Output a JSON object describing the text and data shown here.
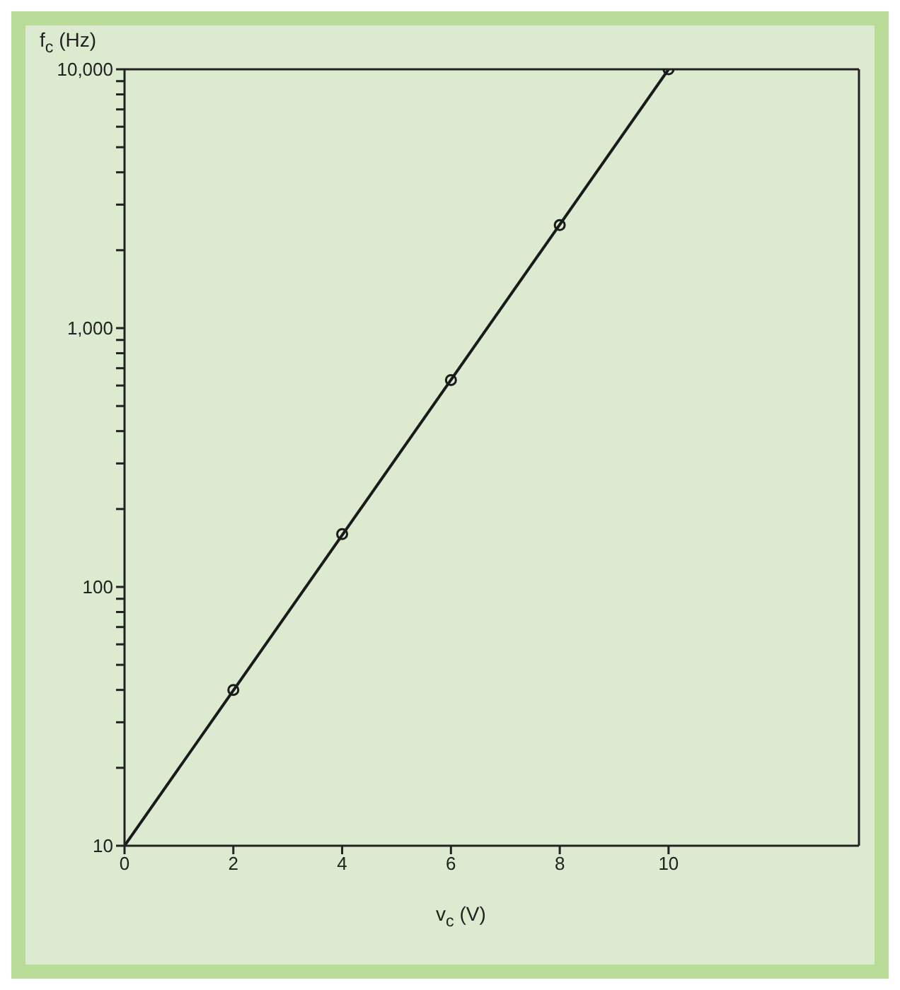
{
  "chart_data": {
    "type": "line",
    "xlabel": "v$_{c}$  (V)",
    "ylabel": "f$_{c}$  (Hz)",
    "xlim": [
      0,
      13.5
    ],
    "xticks": [
      0,
      2,
      4,
      6,
      8,
      10
    ],
    "ylim": [
      10,
      10000
    ],
    "log": true,
    "yticks": [
      10,
      {
        "value": 20,
        "label": null
      },
      {
        "value": 30,
        "label": null
      },
      {
        "value": 40,
        "label": null
      },
      {
        "value": 50,
        "label": null
      },
      {
        "value": 60,
        "label": null
      },
      {
        "value": 70,
        "label": null
      },
      {
        "value": 80,
        "label": null
      },
      {
        "value": 90,
        "label": null
      },
      100,
      {
        "value": 200,
        "label": null
      },
      {
        "value": 300,
        "label": null
      },
      {
        "value": 400,
        "label": null
      },
      {
        "value": 500,
        "label": null
      },
      {
        "value": 600,
        "label": null
      },
      {
        "value": 700,
        "label": null
      },
      {
        "value": 800,
        "label": null
      },
      {
        "value": 900,
        "label": null
      },
      {
        "value": 1000,
        "label": "1,000"
      },
      {
        "value": 2000,
        "label": null
      },
      {
        "value": 3000,
        "label": null
      },
      {
        "value": 4000,
        "label": null
      },
      {
        "value": 5000,
        "label": null
      },
      {
        "value": 6000,
        "label": null
      },
      {
        "value": 7000,
        "label": null
      },
      {
        "value": 8000,
        "label": null
      },
      {
        "value": 9000,
        "label": null
      },
      {
        "value": 10000,
        "label": "10,000"
      }
    ],
    "grid": false,
    "series": [
      {
        "color": "#1a1a1a",
        "marker": "none",
        "x": [
          0,
          10
        ],
        "values": [
          10,
          10000
        ]
      },
      {
        "type": "scatter",
        "color": "#1a1a1a",
        "marker": "circle",
        "x": [
          2,
          4,
          6,
          8,
          10
        ],
        "values": [
          40,
          160,
          630,
          2500,
          10000
        ]
      }
    ]
  }
}
